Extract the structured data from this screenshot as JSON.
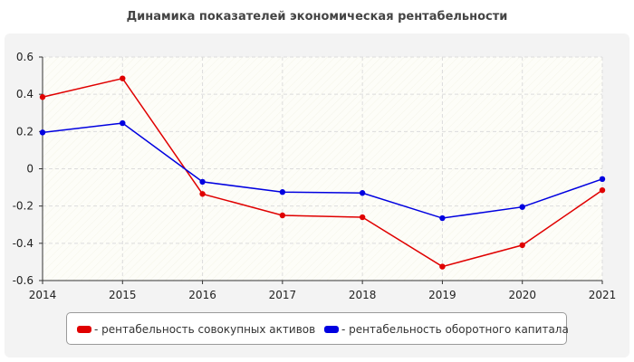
{
  "chart_data": {
    "type": "line",
    "title": "Динамика показателей экономическая рентабельности",
    "x": [
      "2014",
      "2015",
      "2016",
      "2017",
      "2018",
      "2019",
      "2020",
      "2021"
    ],
    "y_ticks": [
      "0.6",
      "0.4",
      "0.2",
      "0",
      "-0.2",
      "-0.4",
      "-0.6"
    ],
    "ylim": [
      -0.6,
      0.6
    ],
    "grid": true,
    "legend_position": "bottom",
    "series": [
      {
        "name": "рентабельность совокупных активов",
        "color": "#e00000",
        "values": [
          0.385,
          0.485,
          -0.135,
          -0.25,
          -0.26,
          -0.525,
          -0.41,
          -0.115
        ]
      },
      {
        "name": "рентабельность оборотного капитала",
        "color": "#0000e0",
        "values": [
          0.195,
          0.245,
          -0.07,
          -0.125,
          -0.13,
          -0.265,
          -0.205,
          -0.055
        ]
      }
    ]
  },
  "legend": {
    "items": [
      {
        "label": "- рентабельность совокупных активов",
        "color": "#e00000"
      },
      {
        "label": "- рентабельность оборотного капитала",
        "color": "#0000e0"
      }
    ]
  }
}
